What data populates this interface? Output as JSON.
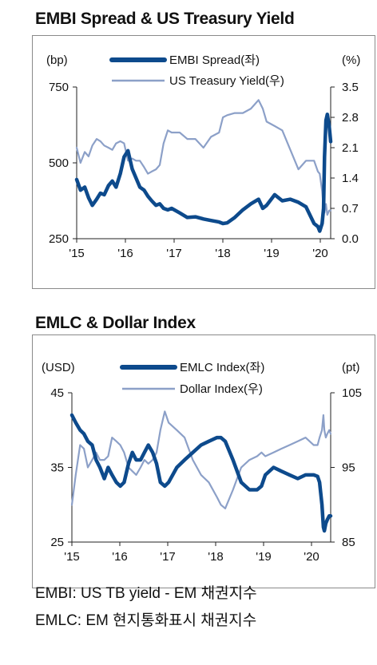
{
  "colors": {
    "dark_series": "#0d4a8c",
    "light_series": "#8ca0c8",
    "frame": "#8a8a8a"
  },
  "footnotes": [
    "EMBI: US TB yield - EM  채권지수",
    "EMLC: EM  현지통화표시  채권지수"
  ],
  "chart_data": [
    {
      "type": "line",
      "title": "EMBI Spread & US Treasury Yield",
      "left_unit": "(bp)",
      "right_unit": "(%)",
      "x_ticks": [
        "'15",
        "'16",
        "'17",
        "'18",
        "'19",
        "'20"
      ],
      "x_domain": [
        2015.0,
        2020.35
      ],
      "left_axis": {
        "ylim": [
          250,
          750
        ],
        "ticks": [
          "750",
          "500",
          "250"
        ]
      },
      "right_axis": {
        "ylim": [
          0.0,
          3.5
        ],
        "ticks": [
          "3.5",
          "2.8",
          "2.1",
          "1.4",
          "0.7",
          "0.0"
        ]
      },
      "grid": false,
      "legend_position": "top-center",
      "series": [
        {
          "name": "EMBI Spread(좌)",
          "axis": "left",
          "style": "thick",
          "x": [
            2015.0,
            2015.08,
            2015.17,
            2015.25,
            2015.33,
            2015.42,
            2015.5,
            2015.58,
            2015.67,
            2015.75,
            2015.83,
            2015.92,
            2016.0,
            2016.08,
            2016.17,
            2016.25,
            2016.33,
            2016.42,
            2016.5,
            2016.58,
            2016.67,
            2016.75,
            2016.83,
            2016.92,
            2017.0,
            2017.17,
            2017.33,
            2017.5,
            2017.67,
            2017.83,
            2018.0,
            2018.08,
            2018.17,
            2018.33,
            2018.5,
            2018.67,
            2018.83,
            2018.92,
            2019.0,
            2019.17,
            2019.33,
            2019.5,
            2019.67,
            2019.83,
            2020.0,
            2020.08,
            2020.12,
            2020.17,
            2020.2,
            2020.22,
            2020.25,
            2020.28,
            2020.32,
            2020.35
          ],
          "values": [
            445,
            410,
            420,
            385,
            360,
            380,
            400,
            395,
            425,
            440,
            420,
            465,
            520,
            540,
            480,
            450,
            420,
            410,
            390,
            375,
            360,
            365,
            350,
            345,
            350,
            335,
            320,
            322,
            315,
            310,
            305,
            300,
            302,
            320,
            345,
            365,
            380,
            350,
            360,
            395,
            375,
            380,
            370,
            355,
            300,
            290,
            275,
            300,
            350,
            520,
            640,
            660,
            620,
            570
          ]
        },
        {
          "name": "US Treasury Yield(우)",
          "axis": "right",
          "style": "thin",
          "x": [
            2015.0,
            2015.08,
            2015.17,
            2015.25,
            2015.33,
            2015.42,
            2015.5,
            2015.58,
            2015.67,
            2015.75,
            2015.83,
            2015.92,
            2016.0,
            2016.08,
            2016.17,
            2016.25,
            2016.33,
            2016.42,
            2016.5,
            2016.58,
            2016.67,
            2016.75,
            2016.83,
            2016.92,
            2017.0,
            2017.17,
            2017.33,
            2017.5,
            2017.67,
            2017.83,
            2018.0,
            2018.08,
            2018.17,
            2018.33,
            2018.5,
            2018.67,
            2018.83,
            2018.92,
            2019.0,
            2019.17,
            2019.33,
            2019.5,
            2019.67,
            2019.83,
            2020.0,
            2020.08,
            2020.12,
            2020.17,
            2020.2,
            2020.22,
            2020.25,
            2020.28,
            2020.32,
            2020.35
          ],
          "values": [
            2.1,
            1.75,
            2.0,
            1.9,
            2.15,
            2.3,
            2.25,
            2.15,
            2.1,
            2.05,
            2.2,
            2.25,
            2.2,
            1.8,
            1.85,
            1.8,
            1.8,
            1.65,
            1.5,
            1.55,
            1.6,
            1.7,
            2.2,
            2.5,
            2.45,
            2.45,
            2.3,
            2.3,
            2.1,
            2.35,
            2.45,
            2.8,
            2.85,
            2.9,
            2.9,
            3.0,
            3.2,
            3.0,
            2.7,
            2.6,
            2.5,
            2.05,
            1.6,
            1.8,
            1.8,
            1.55,
            1.5,
            1.1,
            0.7,
            0.6,
            0.8,
            0.55,
            0.65,
            0.65
          ]
        }
      ]
    },
    {
      "type": "line",
      "title": "EMLC & Dollar Index",
      "left_unit": "(USD)",
      "right_unit": "(pt)",
      "x_ticks": [
        "'15",
        "'16",
        "'17",
        "'18",
        "'19",
        "'20"
      ],
      "x_domain": [
        2015.0,
        2020.35
      ],
      "left_axis": {
        "ylim": [
          25,
          45
        ],
        "ticks": [
          "45",
          "35",
          "25"
        ]
      },
      "right_axis": {
        "ylim": [
          85,
          105
        ],
        "ticks": [
          "105",
          "95",
          "85"
        ]
      },
      "grid": false,
      "legend_position": "top-center",
      "series": [
        {
          "name": "EMLC Index(좌)",
          "axis": "left",
          "style": "thick",
          "x": [
            2015.0,
            2015.08,
            2015.17,
            2015.25,
            2015.33,
            2015.42,
            2015.5,
            2015.58,
            2015.67,
            2015.75,
            2015.83,
            2015.92,
            2016.0,
            2016.08,
            2016.17,
            2016.25,
            2016.33,
            2016.42,
            2016.5,
            2016.58,
            2016.67,
            2016.75,
            2016.83,
            2016.92,
            2017.0,
            2017.17,
            2017.33,
            2017.5,
            2017.67,
            2017.83,
            2018.0,
            2018.08,
            2018.17,
            2018.33,
            2018.5,
            2018.67,
            2018.83,
            2018.92,
            2019.0,
            2019.17,
            2019.33,
            2019.5,
            2019.67,
            2019.83,
            2020.0,
            2020.08,
            2020.12,
            2020.17,
            2020.2,
            2020.22,
            2020.25,
            2020.28,
            2020.32,
            2020.35
          ],
          "values": [
            42,
            41,
            40,
            39.5,
            38.5,
            38,
            36,
            35,
            33.5,
            35,
            34,
            33,
            32.5,
            33,
            35.5,
            37,
            36,
            36,
            37,
            38,
            37,
            35.5,
            33,
            32.5,
            33,
            35,
            36,
            37,
            38,
            38.5,
            39,
            39,
            38.5,
            36,
            33,
            32,
            32,
            32.5,
            34,
            35,
            34.5,
            34,
            33.5,
            34,
            34,
            33.8,
            33,
            30,
            27,
            26.5,
            27.5,
            28,
            28.5,
            28.5
          ]
        },
        {
          "name": "Dollar Index(우)",
          "axis": "right",
          "style": "thin",
          "x": [
            2015.0,
            2015.08,
            2015.17,
            2015.25,
            2015.33,
            2015.42,
            2015.5,
            2015.58,
            2015.67,
            2015.75,
            2015.83,
            2015.92,
            2016.0,
            2016.08,
            2016.17,
            2016.25,
            2016.33,
            2016.42,
            2016.5,
            2016.58,
            2016.67,
            2016.75,
            2016.83,
            2016.92,
            2017.0,
            2017.17,
            2017.33,
            2017.5,
            2017.67,
            2017.83,
            2018.0,
            2018.08,
            2018.17,
            2018.33,
            2018.5,
            2018.67,
            2018.83,
            2018.92,
            2019.0,
            2019.17,
            2019.33,
            2019.5,
            2019.67,
            2019.83,
            2020.0,
            2020.08,
            2020.12,
            2020.17,
            2020.2,
            2020.22,
            2020.25,
            2020.28,
            2020.32,
            2020.35
          ],
          "values": [
            90,
            94,
            98,
            97.5,
            95,
            96,
            97,
            96,
            96,
            96.5,
            99,
            98.5,
            98,
            97,
            95,
            94.5,
            94,
            95,
            96,
            95.5,
            96,
            97,
            100,
            102.5,
            101,
            100,
            99,
            96,
            94,
            93,
            91,
            90,
            89.5,
            92,
            95,
            96,
            96.5,
            97,
            96.5,
            97,
            97.5,
            98,
            98.5,
            99,
            98,
            98,
            99,
            100,
            102,
            100,
            99,
            99.5,
            100,
            99.5
          ]
        }
      ]
    }
  ]
}
